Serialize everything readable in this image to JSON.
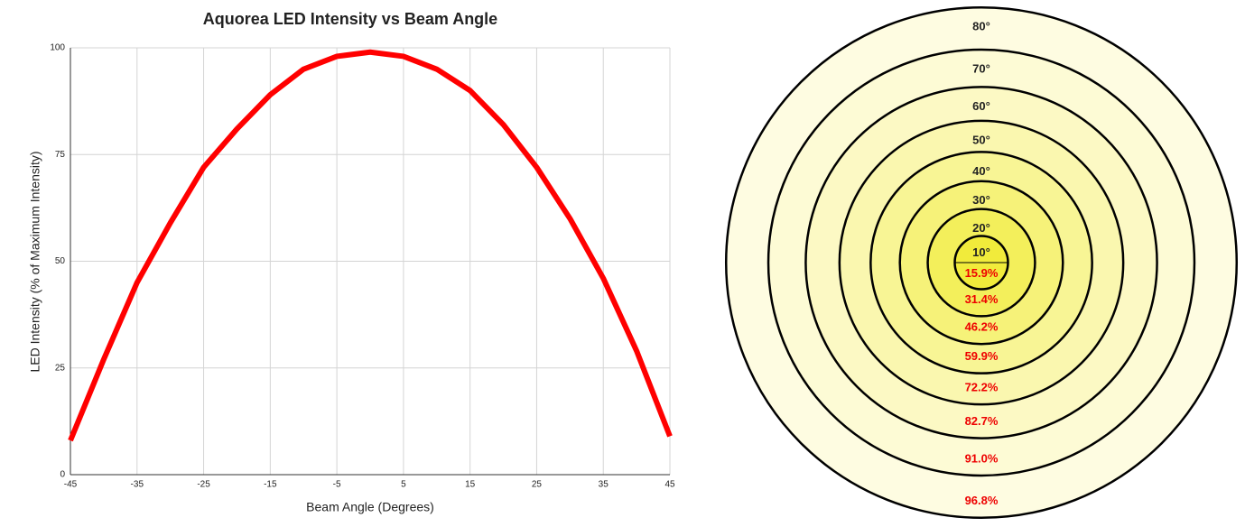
{
  "chart_data": [
    {
      "type": "line",
      "title": "Aquorea LED Intensity vs Beam Angle",
      "x_label": "Beam Angle (Degrees)",
      "y_label": "LED Intensity (% of Maximum Intensity)",
      "x": [
        -45,
        -40,
        -35,
        -30,
        -25,
        -20,
        -15,
        -10,
        -5,
        0,
        5,
        10,
        15,
        20,
        25,
        30,
        35,
        40,
        45
      ],
      "values": [
        8,
        27,
        45,
        59,
        72,
        81,
        89,
        95,
        98,
        99,
        98,
        95,
        90,
        82,
        72,
        60,
        46,
        29,
        9
      ],
      "color": "#ff0000",
      "xlim": [
        -45,
        45
      ],
      "xticks": [
        -45,
        -35,
        -25,
        -15,
        -5,
        5,
        15,
        25,
        35,
        45
      ],
      "ylim": [
        0,
        100
      ],
      "yticks": [
        0,
        25,
        50,
        75,
        100
      ],
      "grid": true
    },
    {
      "type": "rings",
      "rings": [
        {
          "value": 10,
          "label": "10°"
        },
        {
          "value": 20,
          "label": "20°"
        },
        {
          "value": 30,
          "label": "30°"
        },
        {
          "value": 40,
          "label": "40°"
        },
        {
          "value": 50,
          "label": "50°"
        },
        {
          "value": 60,
          "label": "60°"
        },
        {
          "value": 70,
          "label": "70°"
        },
        {
          "value": 80,
          "label": "80°"
        }
      ],
      "values": [
        15.9,
        31.4,
        46.2,
        59.9,
        72.2,
        82.7,
        91.0,
        96.8
      ],
      "value_labels": [
        "15.9%",
        "31.4%",
        "46.2%",
        "59.9%",
        "72.2%",
        "82.7%",
        "91.0%",
        "96.8%"
      ],
      "color": "#ee0000"
    }
  ]
}
